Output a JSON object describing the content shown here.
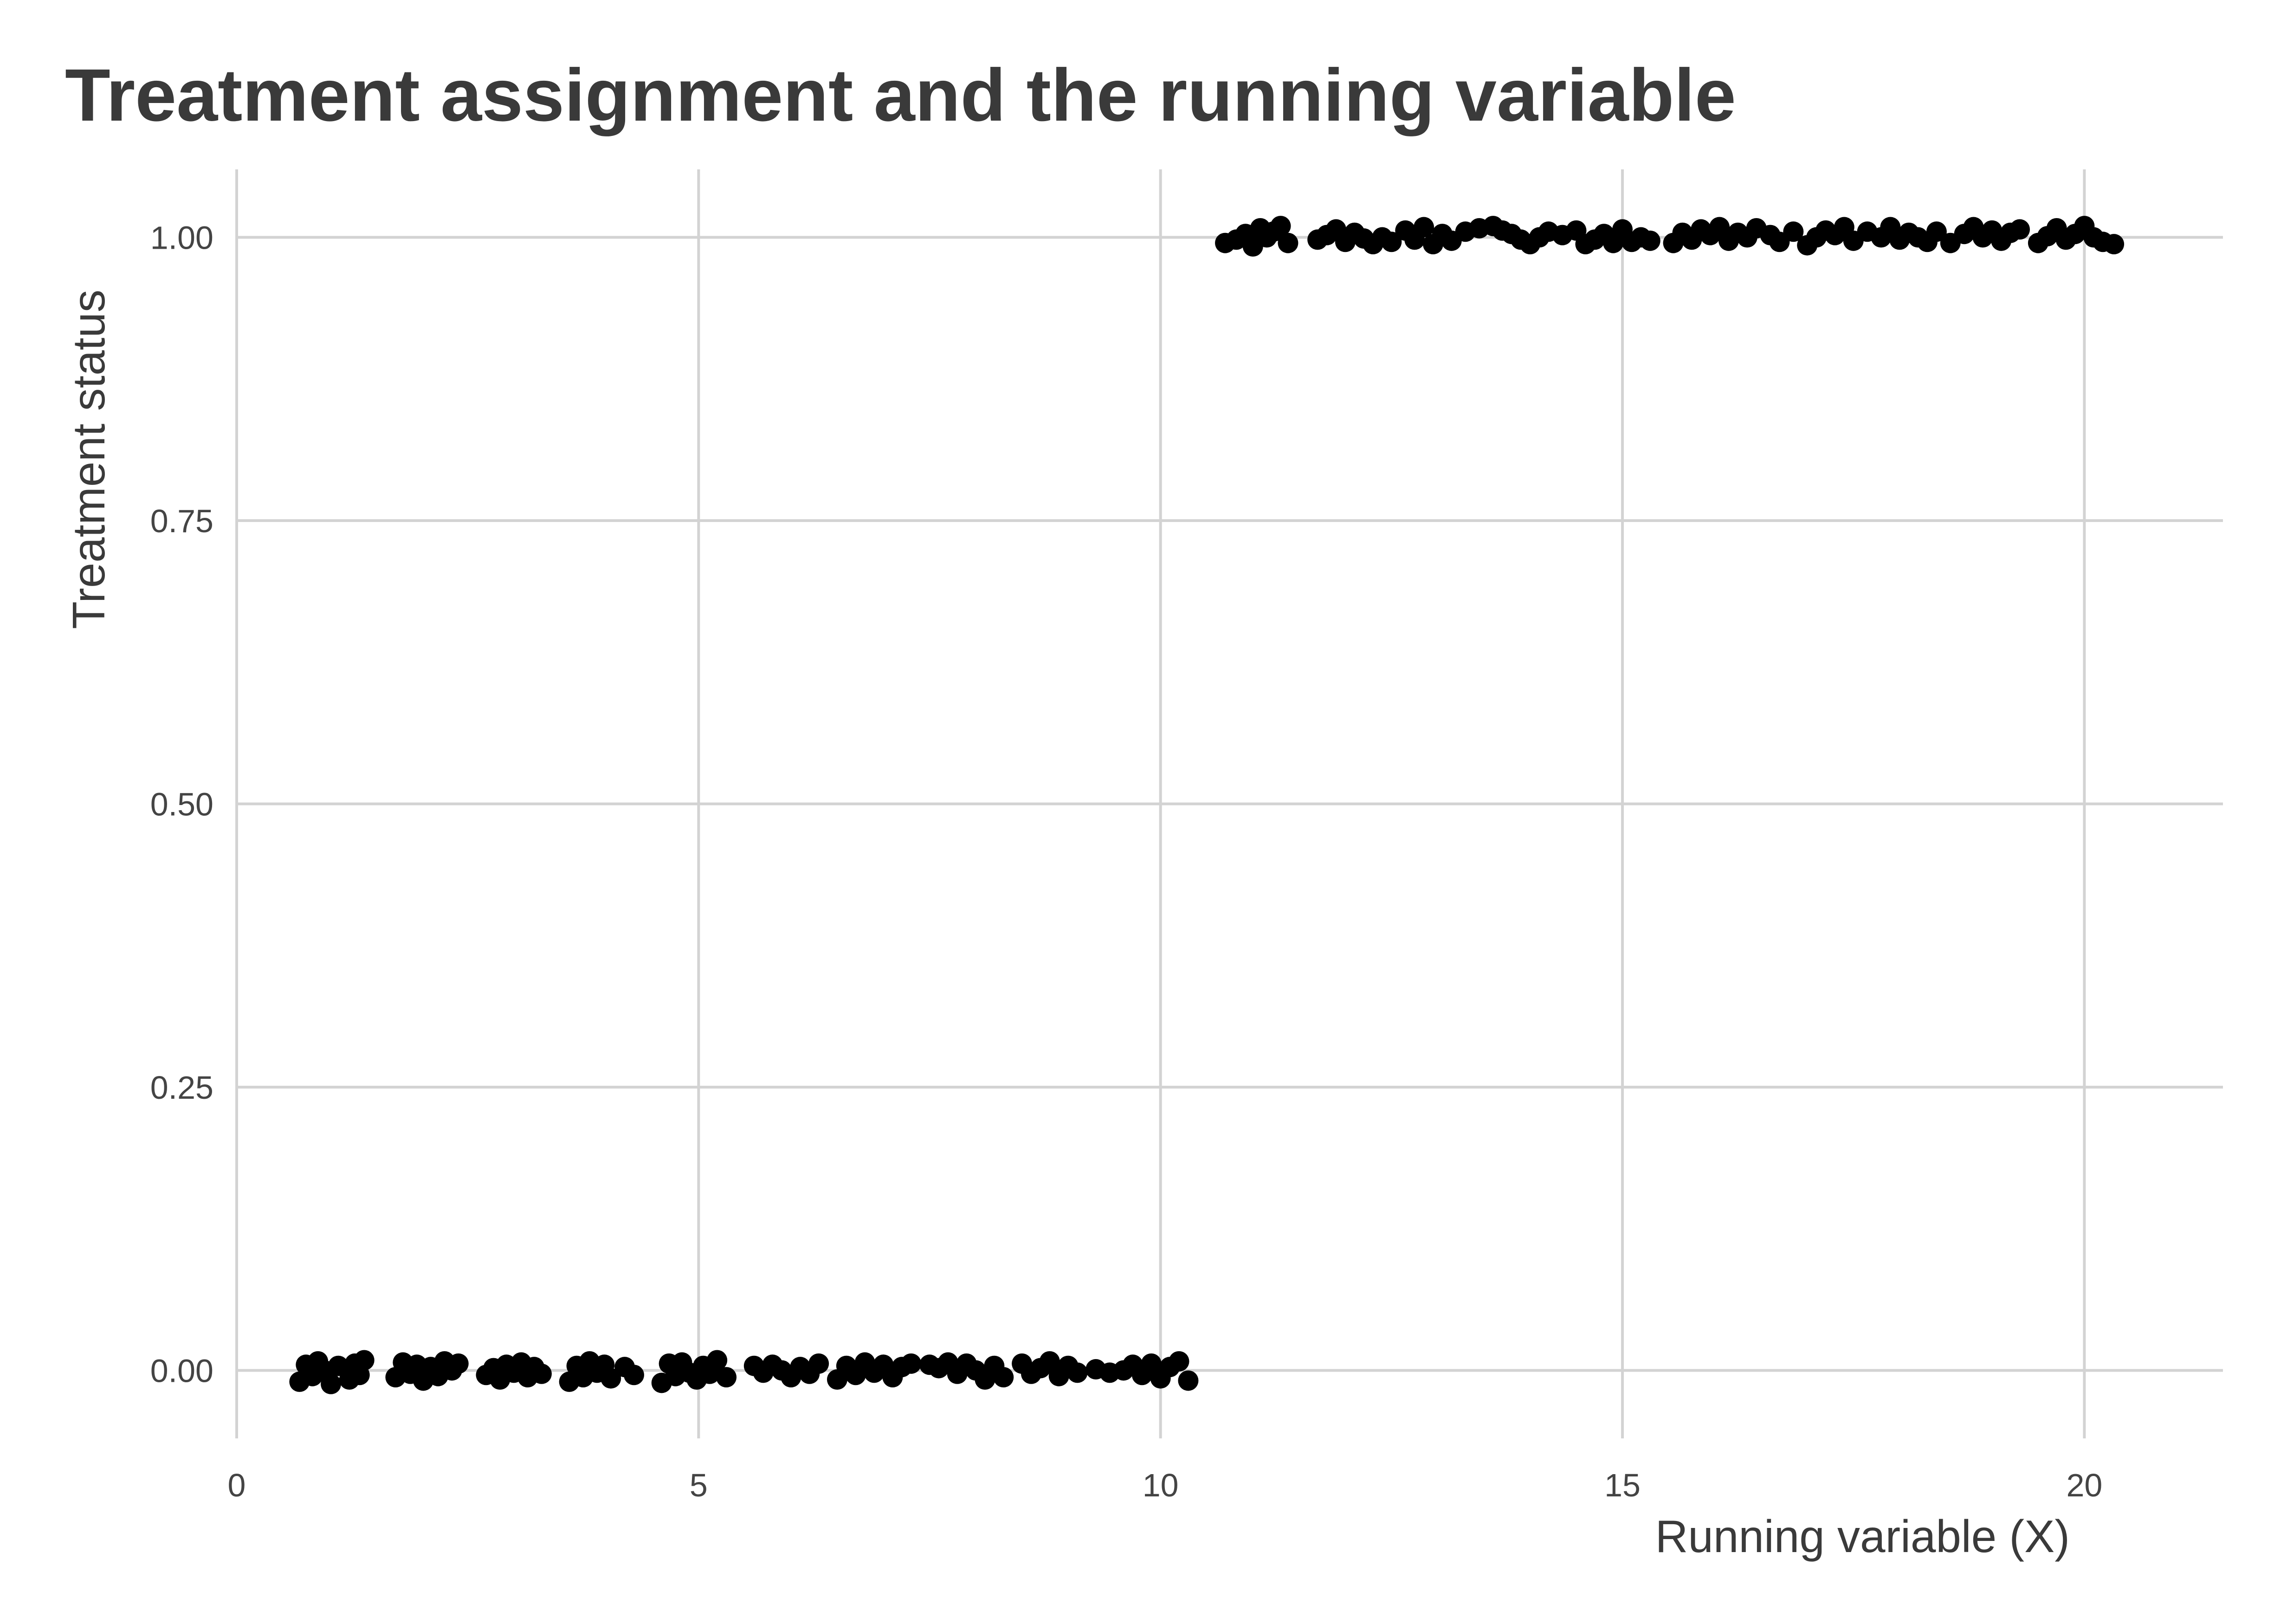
{
  "chart_data": {
    "type": "scatter",
    "title": "Treatment assignment and the running variable",
    "xlabel": "Running variable (X)",
    "ylabel": "Treatment status",
    "xlim": [
      0,
      21.5
    ],
    "ylim": [
      -0.06,
      1.06
    ],
    "x_ticks": [
      0,
      5,
      10,
      15,
      20
    ],
    "x_tick_labels": [
      "0",
      "5",
      "10",
      "15",
      "20"
    ],
    "y_ticks": [
      0,
      0.25,
      0.5,
      0.75,
      1
    ],
    "y_tick_labels": [
      "0.00",
      "0.25",
      "0.50",
      "0.75",
      "1.00"
    ],
    "grid": true,
    "legend": "none",
    "point_color": "#000000",
    "series": [
      {
        "x": [
          0.68,
          0.75,
          0.82,
          0.88,
          0.95,
          1.02,
          1.1,
          1.22,
          1.28,
          1.33,
          1.38,
          1.72,
          1.8,
          1.88,
          1.95,
          2.02,
          2.1,
          2.18,
          2.25,
          2.33,
          2.4,
          2.7,
          2.78,
          2.85,
          2.92,
          3.0,
          3.08,
          3.15,
          3.22,
          3.3,
          3.6,
          3.68,
          3.75,
          3.82,
          3.9,
          3.98,
          4.05,
          4.2,
          4.3,
          4.6,
          4.68,
          4.75,
          4.82,
          4.9,
          4.98,
          5.05,
          5.12,
          5.2,
          5.3,
          5.6,
          5.7,
          5.8,
          5.9,
          6.0,
          6.1,
          6.2,
          6.3,
          6.5,
          6.6,
          6.7,
          6.8,
          6.9,
          7.0,
          7.1,
          7.2,
          7.3,
          7.5,
          7.6,
          7.7,
          7.8,
          7.9,
          8.0,
          8.1,
          8.2,
          8.3,
          8.5,
          8.6,
          8.7,
          8.8,
          8.9,
          9.0,
          9.1,
          9.3,
          9.45,
          9.6,
          9.7,
          9.8,
          9.9,
          10.0,
          10.1,
          10.2,
          10.3
        ],
        "y": [
          -0.01,
          0.005,
          -0.005,
          0.008,
          0.0,
          -0.012,
          0.004,
          -0.008,
          0.006,
          -0.004,
          0.009,
          -0.006,
          0.007,
          -0.003,
          0.005,
          -0.009,
          0.003,
          -0.005,
          0.008,
          0.0,
          0.006,
          -0.004,
          0.002,
          -0.008,
          0.005,
          -0.002,
          0.007,
          -0.006,
          0.003,
          -0.003,
          -0.01,
          0.004,
          -0.006,
          0.008,
          -0.002,
          0.005,
          -0.007,
          0.003,
          -0.004,
          -0.011,
          0.006,
          -0.005,
          0.007,
          -0.002,
          -0.008,
          0.004,
          -0.003,
          0.009,
          -0.006,
          0.004,
          -0.002,
          0.005,
          0.0,
          -0.006,
          0.003,
          -0.003,
          0.006,
          -0.008,
          0.004,
          -0.004,
          0.007,
          -0.002,
          0.005,
          -0.006,
          0.003,
          0.006,
          0.005,
          0.002,
          0.007,
          -0.003,
          0.006,
          0.0,
          -0.008,
          0.004,
          -0.006,
          0.006,
          -0.003,
          0.002,
          0.008,
          -0.005,
          0.004,
          -0.002,
          0.001,
          -0.002,
          0.0,
          0.005,
          -0.004,
          0.006,
          -0.007,
          0.003,
          0.008,
          -0.009
        ]
      },
      {
        "x": [
          10.7,
          10.82,
          10.92,
          11.0,
          11.08,
          11.15,
          11.22,
          11.3,
          11.38,
          11.7,
          11.8,
          11.9,
          12.0,
          12.1,
          12.2,
          12.3,
          12.4,
          12.5,
          12.65,
          12.75,
          12.85,
          12.95,
          13.05,
          13.15,
          13.3,
          13.45,
          13.6,
          13.7,
          13.8,
          13.9,
          14.0,
          14.1,
          14.2,
          14.35,
          14.5,
          14.6,
          14.7,
          14.8,
          14.9,
          15.0,
          15.1,
          15.2,
          15.3,
          15.55,
          15.65,
          15.75,
          15.85,
          15.95,
          16.05,
          16.15,
          16.25,
          16.35,
          16.45,
          16.6,
          16.7,
          16.85,
          17.0,
          17.1,
          17.2,
          17.3,
          17.4,
          17.5,
          17.65,
          17.8,
          17.9,
          18.0,
          18.1,
          18.2,
          18.3,
          18.4,
          18.55,
          18.7,
          18.8,
          18.9,
          19.0,
          19.1,
          19.2,
          19.3,
          19.5,
          19.6,
          19.7,
          19.8,
          19.9,
          20.0,
          20.1,
          20.2,
          20.32
        ],
        "y": [
          0.995,
          0.998,
          1.003,
          0.992,
          1.008,
          1.0,
          1.005,
          1.01,
          0.995,
          0.998,
          1.002,
          1.007,
          0.996,
          1.004,
          0.999,
          0.994,
          1.0,
          0.996,
          1.006,
          0.998,
          1.009,
          0.994,
          1.003,
          0.997,
          1.005,
          1.008,
          1.01,
          1.006,
          1.003,
          0.998,
          0.994,
          1.0,
          1.005,
          1.002,
          1.006,
          0.994,
          0.998,
          1.003,
          0.995,
          1.007,
          0.996,
          1.0,
          0.997,
          0.995,
          1.004,
          0.998,
          1.007,
          1.002,
          1.009,
          0.997,
          1.004,
          1.0,
          1.008,
          1.002,
          0.996,
          1.005,
          0.993,
          1.0,
          1.006,
          1.002,
          1.009,
          0.997,
          1.005,
          1.0,
          1.009,
          0.998,
          1.004,
          1.0,
          0.996,
          1.005,
          0.995,
          1.003,
          1.009,
          1.0,
          1.006,
          0.997,
          1.004,
          1.007,
          0.995,
          1.001,
          1.008,
          0.998,
          1.003,
          1.01,
          1.0,
          0.996,
          0.994
        ]
      }
    ]
  }
}
